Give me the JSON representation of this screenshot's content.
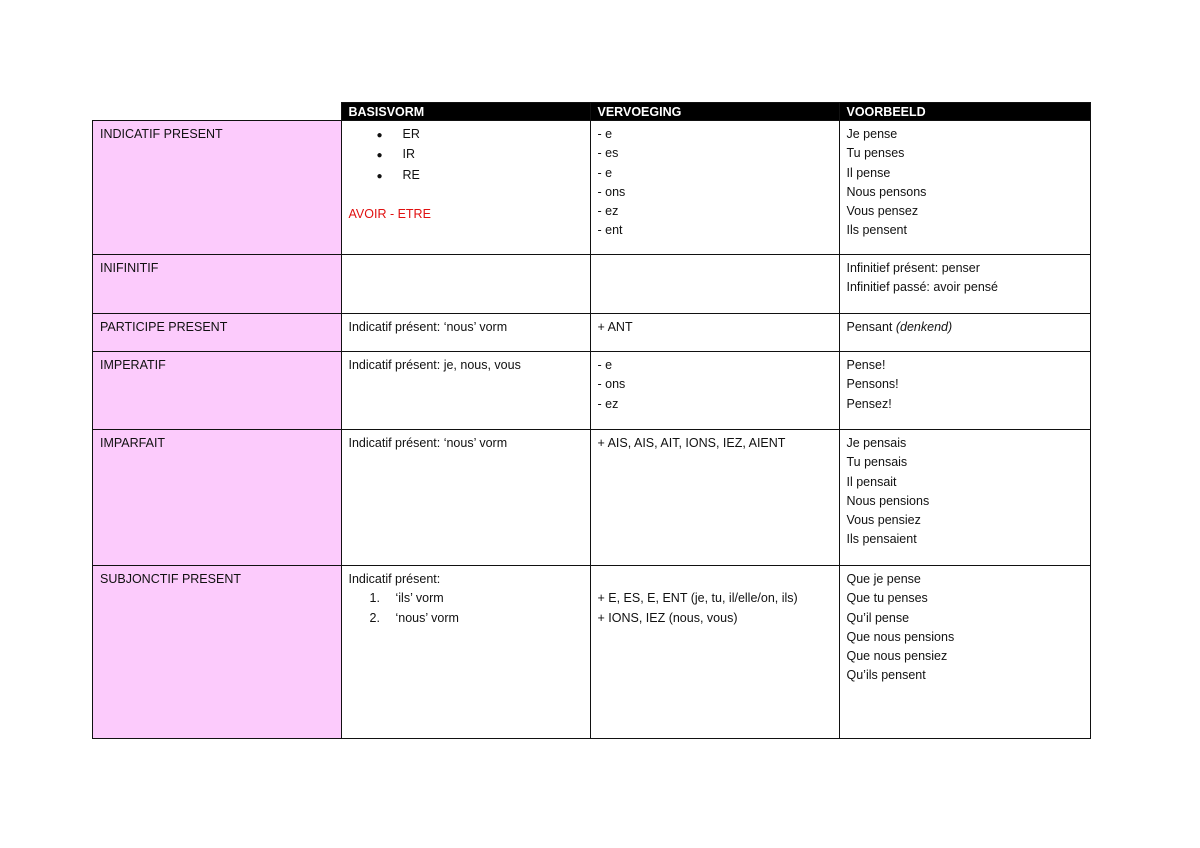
{
  "headers": [
    "",
    "BASISVORM",
    "VERVOEGING",
    "VOORBEELD"
  ],
  "colors": {
    "label_bg": "#fccbfc",
    "header_bg": "#000000",
    "red": "#e01010"
  },
  "rows": [
    {
      "label": "INDICATIF PRESENT",
      "basisvorm": [
        {
          "text": "ER",
          "type": "bullet"
        },
        {
          "text": "IR",
          "type": "bullet"
        },
        {
          "text": "RE",
          "type": "bullet"
        },
        {
          "text": ""
        },
        {
          "text": "AVOIR - ETRE",
          "type": "red"
        }
      ],
      "vervoeging": [
        {
          "text": "- e"
        },
        {
          "text": "- es"
        },
        {
          "text": "- e"
        },
        {
          "text": "- ons"
        },
        {
          "text": "- ez"
        },
        {
          "text": "- ent"
        }
      ],
      "voorbeeld": [
        {
          "text": "Je pense"
        },
        {
          "text": "Tu penses"
        },
        {
          "text": "Il pense"
        },
        {
          "text": "Nous pensons"
        },
        {
          "text": "Vous pensez"
        },
        {
          "text": "Ils pensent"
        }
      ]
    },
    {
      "label": "INIFINITIF",
      "basisvorm": [],
      "vervoeging": [],
      "voorbeeld": [
        {
          "text": "Infinitief présent: penser"
        },
        {
          "text": "Infinitief passé: avoir pensé"
        }
      ]
    },
    {
      "label": "PARTICIPE PRESENT",
      "basisvorm": [
        {
          "text": "Indicatif présent:  ‘nous’ vorm"
        }
      ],
      "vervoeging": [
        {
          "text": "+ ANT"
        }
      ],
      "voorbeeld": [
        {
          "text": "Pensant ",
          "em": "(denkend)"
        }
      ]
    },
    {
      "label": "IMPERATIF",
      "basisvorm": [
        {
          "text": "Indicatif présent: je, nous, vous"
        }
      ],
      "vervoeging": [
        {
          "text": "- e"
        },
        {
          "text": "- ons"
        },
        {
          "text": "- ez"
        }
      ],
      "voorbeeld": [
        {
          "text": "Pense!"
        },
        {
          "text": "Pensons!"
        },
        {
          "text": "Pensez!"
        }
      ]
    },
    {
      "label": "IMPARFAIT",
      "basisvorm": [
        {
          "text": "Indicatif présent: ‘nous’ vorm"
        }
      ],
      "vervoeging": [
        {
          "text": "+ AIS, AIS, AIT, IONS, IEZ, AIENT"
        }
      ],
      "voorbeeld": [
        {
          "text": "Je pensais"
        },
        {
          "text": "Tu pensais"
        },
        {
          "text": "Il pensait"
        },
        {
          "text": "Nous pensions"
        },
        {
          "text": "Vous pensiez"
        },
        {
          "text": "Ils pensaient"
        }
      ]
    },
    {
      "label": "SUBJONCTIF PRESENT",
      "basisvorm": [
        {
          "text": "Indicatif présent:"
        },
        {
          "text": "‘ils’ vorm",
          "type": "num",
          "n": "1."
        },
        {
          "text": "‘nous’ vorm",
          "type": "num",
          "n": "2."
        }
      ],
      "vervoeging": [
        {
          "text": ""
        },
        {
          "text": "+ E, ES, E, ENT (je, tu, il/elle/on, ils)"
        },
        {
          "text": "+ IONS, IEZ (nous, vous)"
        }
      ],
      "voorbeeld": [
        {
          "text": "Que je pense"
        },
        {
          "text": "Que tu penses"
        },
        {
          "text": "Qu’il pense"
        },
        {
          "text": "Que nous pensions"
        },
        {
          "text": "Que nous pensiez"
        },
        {
          "text": "Qu’ils pensent"
        }
      ]
    }
  ]
}
